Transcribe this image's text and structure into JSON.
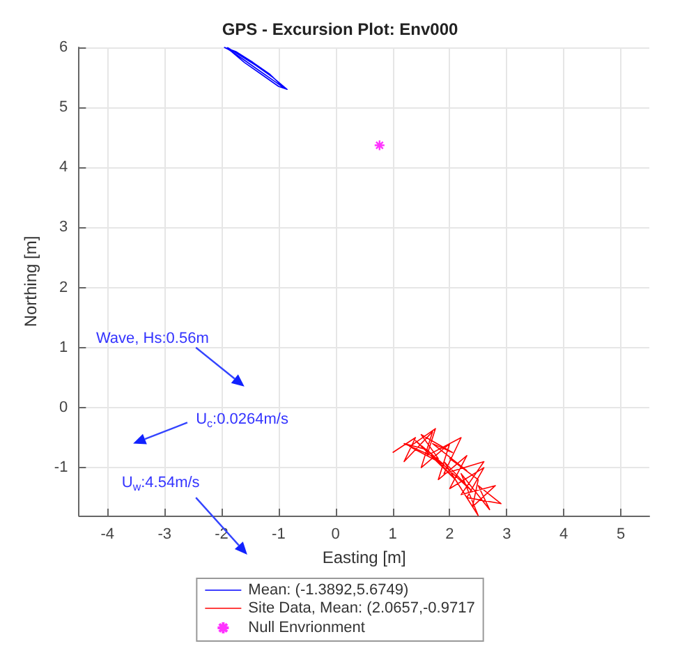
{
  "chart_data": {
    "type": "line",
    "title": "GPS - Excursion Plot: Env000",
    "xlabel": "Easting [m]",
    "ylabel": "Northing [m]",
    "xlim": [
      -4.5,
      5.5
    ],
    "xticks": [
      -4,
      -3,
      -2,
      -1,
      0,
      1,
      2,
      3,
      4,
      5
    ],
    "ylim": [
      -1.8,
      6
    ],
    "yticks": [
      -1,
      0,
      1,
      2,
      3,
      4,
      5,
      6
    ],
    "grid": true,
    "legend": "bottom",
    "annotations": [
      "Wave, Hs:0.56m",
      "U$_{c}$:0.0264m/s",
      "U$_{w}$:4.54m/s"
    ],
    "series": [
      {
        "name": "Mean: (-1.3892,5.6749)",
        "color": "#0000ff",
        "x": [
          -1.9,
          -1.7,
          -1.4,
          -1.1,
          -0.85,
          -1.0,
          -1.3,
          -1.6,
          -1.85,
          -1.95,
          -1.75,
          -1.45,
          -1.15,
          -0.9,
          -1.05,
          -1.35,
          -1.65,
          -1.9
        ],
        "values": [
          6.0,
          5.88,
          5.7,
          5.5,
          5.3,
          5.35,
          5.55,
          5.75,
          5.95,
          6.0,
          5.93,
          5.75,
          5.55,
          5.32,
          5.42,
          5.62,
          5.82,
          5.98
        ]
      },
      {
        "name": "Site Data, Mean: (2.0657,-0.9717",
        "color": "#ff0000",
        "x": [
          1.0,
          1.4,
          1.2,
          1.7,
          1.5,
          2.0,
          1.8,
          2.3,
          2.0,
          2.6,
          2.3,
          2.9,
          2.5,
          2.7,
          2.2,
          2.5,
          1.9,
          2.4,
          1.6,
          2.1,
          1.4,
          1.9,
          1.3,
          1.75,
          1.6,
          2.2,
          1.9,
          2.6,
          2.2,
          2.8,
          2.4,
          2.5,
          2.0,
          2.3,
          1.7,
          2.05,
          1.5,
          1.8,
          1.2,
          1.6
        ],
        "values": [
          -0.75,
          -0.5,
          -0.9,
          -0.4,
          -1.0,
          -0.6,
          -1.2,
          -0.8,
          -1.35,
          -1.0,
          -1.5,
          -1.6,
          -1.3,
          -1.7,
          -1.1,
          -1.8,
          -0.9,
          -1.4,
          -0.7,
          -1.2,
          -0.55,
          -0.95,
          -0.65,
          -0.35,
          -0.8,
          -0.5,
          -1.1,
          -0.9,
          -1.45,
          -1.3,
          -1.65,
          -1.2,
          -0.85,
          -1.05,
          -0.6,
          -0.75,
          -0.45,
          -0.85,
          -0.6,
          -0.7
        ]
      },
      {
        "name": "Null Envrionment",
        "type": "scatter",
        "marker": "cross",
        "color": "#ff00ff",
        "x": [
          0.77
        ],
        "values": [
          4.37
        ]
      }
    ]
  }
}
